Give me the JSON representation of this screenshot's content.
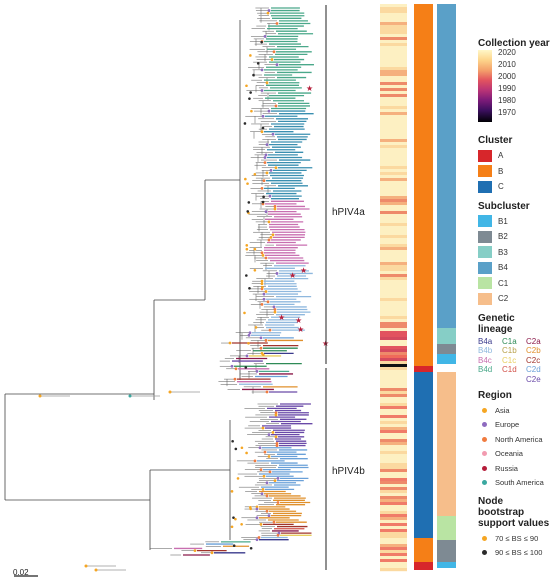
{
  "clades": [
    {
      "label": "hPIV4a"
    },
    {
      "label": "hPIV4b"
    }
  ],
  "scale_bar": {
    "label": "0.02"
  },
  "legend": {
    "collection_year": {
      "title": "Collection year",
      "ticks": [
        "2020",
        "2010",
        "2000",
        "1990",
        "1980",
        "1970"
      ],
      "colormap": "magma"
    },
    "cluster": {
      "title": "Cluster",
      "items": [
        {
          "label": "A",
          "color": "#d7262b"
        },
        {
          "label": "B",
          "color": "#f57f17"
        },
        {
          "label": "C",
          "color": "#1f6fb2"
        }
      ]
    },
    "subcluster": {
      "title": "Subcluster",
      "items": [
        {
          "label": "B1",
          "color": "#41b6e6"
        },
        {
          "label": "B2",
          "color": "#7e8a93"
        },
        {
          "label": "B3",
          "color": "#86cec6"
        },
        {
          "label": "B4",
          "color": "#5aa0c8"
        },
        {
          "label": "C1",
          "color": "#b9e4a3"
        },
        {
          "label": "C2",
          "color": "#f6be8b"
        }
      ]
    },
    "genetic_lineage": {
      "title": "Genetic lineage",
      "items": [
        {
          "label": "B4a",
          "color": "#3a3a8c"
        },
        {
          "label": "C1a",
          "color": "#2e8b57"
        },
        {
          "label": "C2a",
          "color": "#8b1a4a"
        },
        {
          "label": "B4b",
          "color": "#8fb8de"
        },
        {
          "label": "C1b",
          "color": "#b8a04a"
        },
        {
          "label": "C2b",
          "color": "#e0902c"
        },
        {
          "label": "B4c",
          "color": "#c86fb0"
        },
        {
          "label": "C1c",
          "color": "#e8cf60"
        },
        {
          "label": "C2c",
          "color": "#a0342c"
        },
        {
          "label": "B4d",
          "color": "#4aa88a"
        },
        {
          "label": "C1d",
          "color": "#d2524a"
        },
        {
          "label": "C2d",
          "color": "#6aa0d8"
        },
        {
          "label": "C2e",
          "color": "#6a4aa8"
        }
      ]
    },
    "region": {
      "title": "Region",
      "items": [
        {
          "label": "Asia",
          "color": "#f5a623"
        },
        {
          "label": "Europe",
          "color": "#8e6bbf"
        },
        {
          "label": "North America",
          "color": "#f07b3f"
        },
        {
          "label": "Oceania",
          "color": "#f29bb0"
        },
        {
          "label": "Russia",
          "color": "#b51d3a"
        },
        {
          "label": "South America",
          "color": "#3aa8a0"
        }
      ]
    },
    "bootstrap": {
      "title_line1": "Node bootstrap",
      "title_line2": "support values",
      "items": [
        {
          "label": "70 ≤ BS ≤ 90",
          "color": "#f5a623"
        },
        {
          "label": "90 ≤ BS ≤ 100",
          "color": "#2b2b2b"
        }
      ]
    }
  }
}
